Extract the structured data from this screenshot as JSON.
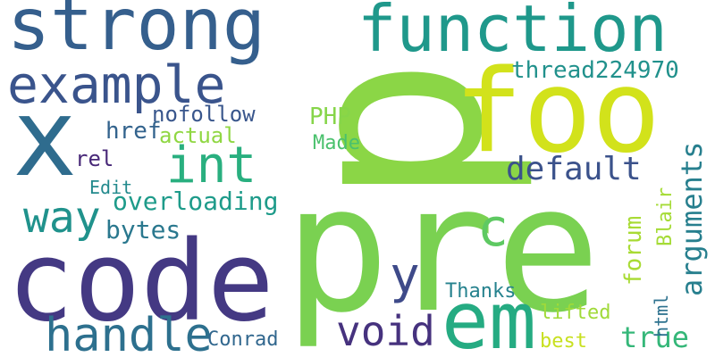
{
  "words": [
    {
      "text": "p",
      "color": "#8bd646",
      "vertical": true
    },
    {
      "text": "pre",
      "color": "#7ad151"
    },
    {
      "text": "code",
      "color": "#443983"
    },
    {
      "text": "foo",
      "color": "#d2e21b"
    },
    {
      "text": "em",
      "color": "#25ab82"
    },
    {
      "text": "x",
      "color": "#2f6c8e"
    },
    {
      "text": "strong",
      "color": "#355f8d"
    },
    {
      "text": "function",
      "color": "#1f988b"
    },
    {
      "text": "example",
      "color": "#3a548c"
    },
    {
      "text": "int",
      "color": "#29af7f"
    },
    {
      "text": "handle",
      "color": "#2d708e"
    },
    {
      "text": "way",
      "color": "#20928c"
    },
    {
      "text": "void",
      "color": "#46327e"
    },
    {
      "text": "c",
      "color": "#5ec962"
    },
    {
      "text": "y",
      "color": "#3e4a89"
    },
    {
      "text": "default",
      "color": "#3b528b"
    },
    {
      "text": "arguments",
      "color": "#277f8e",
      "vertical": true
    },
    {
      "text": "true",
      "color": "#35b779"
    },
    {
      "text": "thread224970",
      "color": "#21918c"
    },
    {
      "text": "overloading",
      "color": "#1e9b8a"
    },
    {
      "text": "nofollow",
      "color": "#39568c"
    },
    {
      "text": "bytes",
      "color": "#2a788e"
    },
    {
      "text": "href",
      "color": "#33638d"
    },
    {
      "text": "PHP",
      "color": "#86d549"
    },
    {
      "text": "actual",
      "color": "#90d743"
    },
    {
      "text": "rel",
      "color": "#482878"
    },
    {
      "text": "Made",
      "color": "#4ac16d"
    },
    {
      "text": "Edit",
      "color": "#238a8d"
    },
    {
      "text": "Thanks",
      "color": "#26828e"
    },
    {
      "text": "lifted",
      "color": "#a0da39"
    },
    {
      "text": "best",
      "color": "#c8e020"
    },
    {
      "text": "Conrad",
      "color": "#31678e"
    },
    {
      "text": "forum",
      "color": "#a8db34",
      "vertical": true
    },
    {
      "text": "html",
      "color": "#2c718e",
      "vertical": true
    },
    {
      "text": "Blair",
      "color": "#a5db36",
      "vertical": true
    }
  ]
}
